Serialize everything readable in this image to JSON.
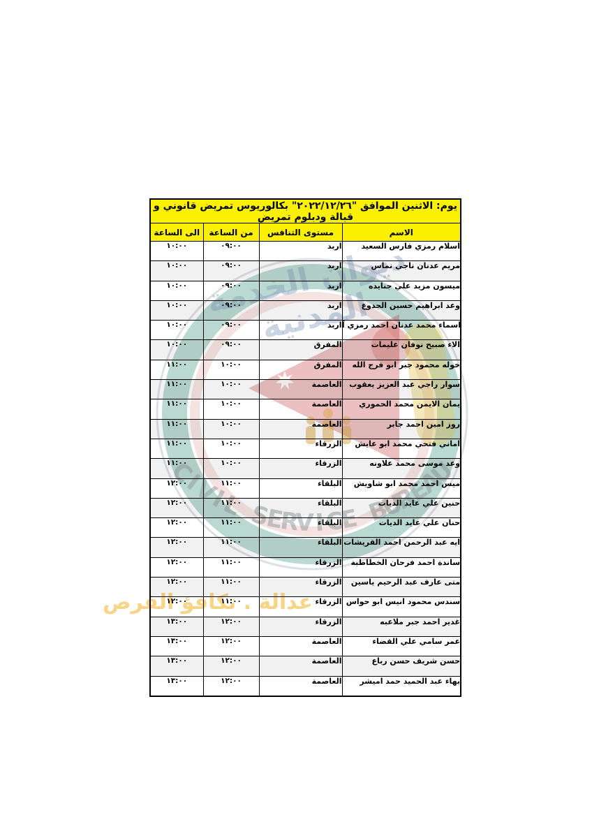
{
  "colors": {
    "header_yellow": "#FAF000",
    "border_black": "#000000",
    "ring_teal": "rgba(80,160,140,0.40)",
    "inner_red_ring": "rgba(200,100,90,0.18)",
    "outer_gray_ring": "rgba(120,130,140,0.25)",
    "emblem_red": "rgba(201,79,79,0.36)",
    "band_yellow": "rgba(232,201,90,0.42)",
    "figure_yellow": "rgba(217,164,62,0.50)",
    "arc_gray": "rgba(150,158,160,0.55)",
    "arabic_blue": "rgba(125,150,185,0.40)",
    "slogan_orange": "rgba(242,186,60,0.62)"
  },
  "watermark": {
    "arabic_top": "ديوان الخدمة المدنية",
    "english_arc": "CIVIL SERVICE BUREAU",
    "slogan": "عدالة . تكافؤ الفرص"
  },
  "table": {
    "title": "يوم: الاثنين  الموافق \"٢٠٢٢/١٢/٢٦\" بكالوريوس تمريض قانوني و قبالة ودبلوم تمريض",
    "headers": {
      "name": "الاسم",
      "level": "مستوى التنافس",
      "from": "من الساعة",
      "to": "الى الساعة"
    },
    "rows": [
      {
        "name": "اسلام رمزي فارس السعيد",
        "level": "اربد",
        "from": "٠٩:٠٠",
        "to": "١٠:٠٠"
      },
      {
        "name": "مريم عدنان ناجي نماس",
        "level": "اربد",
        "from": "٠٩:٠٠",
        "to": "١٠:٠٠"
      },
      {
        "name": "ميسون مزيد علي جنايده",
        "level": "اربد",
        "from": "٠٩:٠٠",
        "to": "١٠:٠٠"
      },
      {
        "name": "وعد ابراهيم حسين الجدوع",
        "level": "اربد",
        "from": "٠٩:٠٠",
        "to": "١٠:٠٠"
      },
      {
        "name": "اسماء محمد عدنان احمد رمزي آغا",
        "level": "اربد",
        "from": "٠٩:٠٠",
        "to": "١٠:٠٠"
      },
      {
        "name": "الاء صبيح نوفان عليمات",
        "level": "المفرق",
        "from": "٠٩:٠٠",
        "to": "١٠:٠٠"
      },
      {
        "name": "خوله محمود جبر ابو فرج الله",
        "level": "المفرق",
        "from": "١٠:٠٠",
        "to": "١١:٠٠"
      },
      {
        "name": "سوار راجي عبد العزيز يعقوب",
        "level": "العاصمة",
        "from": "١٠:٠٠",
        "to": "١١:٠٠"
      },
      {
        "name": "يمان الايمن محمد الحموري",
        "level": "العاصمة",
        "from": "١٠:٠٠",
        "to": "١١:٠٠"
      },
      {
        "name": "روز امين احمد جابر",
        "level": "العاصمة",
        "from": "١٠:٠٠",
        "to": "١١:٠٠"
      },
      {
        "name": "اماني فتحي محمد ابو عايش",
        "level": "الزرقاء",
        "from": "١٠:٠٠",
        "to": "١١:٠٠"
      },
      {
        "name": "وعد موسى محمد علاونه",
        "level": "الزرقاء",
        "from": "١٠:٠٠",
        "to": "١١:٠٠"
      },
      {
        "name": "ميس احمد محمد ابو شاويش",
        "level": "البلقاء",
        "from": "١١:٠٠",
        "to": "١٢:٠٠"
      },
      {
        "name": "حنين علي عايد الديات",
        "level": "البلقاء",
        "from": "١١:٠٠",
        "to": "١٢:٠٠"
      },
      {
        "name": "حنان علي عايد الديات",
        "level": "البلقاء",
        "from": "١١:٠٠",
        "to": "١٢:٠٠"
      },
      {
        "name": "ايه عبد الرحمن احمد القريشات",
        "level": "البلقاء",
        "from": "١١:٠٠",
        "to": "١٢:٠٠"
      },
      {
        "name": "ساندة احمد فرحان الخطاطبة",
        "level": "الزرقاء",
        "from": "١١:٠٠",
        "to": "١٢:٠٠"
      },
      {
        "name": "متى عارف عبد الرحيم ياسين",
        "level": "الزرقاء",
        "from": "١١:٠٠",
        "to": "١٢:٠٠"
      },
      {
        "name": "سندس محمود انيس ابو حواس",
        "level": "الزرقاء",
        "from": "١١:٠٠",
        "to": "١٢:٠٠"
      },
      {
        "name": "غدير احمد جبر ملاعبه",
        "level": "الزرقاء",
        "from": "١٢:٠٠",
        "to": "١٣:٠٠"
      },
      {
        "name": "عمر سامي علي القضاء",
        "level": "العاصمة",
        "from": "١٢:٠٠",
        "to": "١٣:٠٠"
      },
      {
        "name": "حسن شريف حسن رباع",
        "level": "العاصمة",
        "from": "١٢:٠٠",
        "to": "١٣:٠٠"
      },
      {
        "name": "بهاء عبد الحميد حمد اميشر",
        "level": "العاصمة",
        "from": "١٢:٠٠",
        "to": "١٣:٠٠"
      }
    ]
  }
}
